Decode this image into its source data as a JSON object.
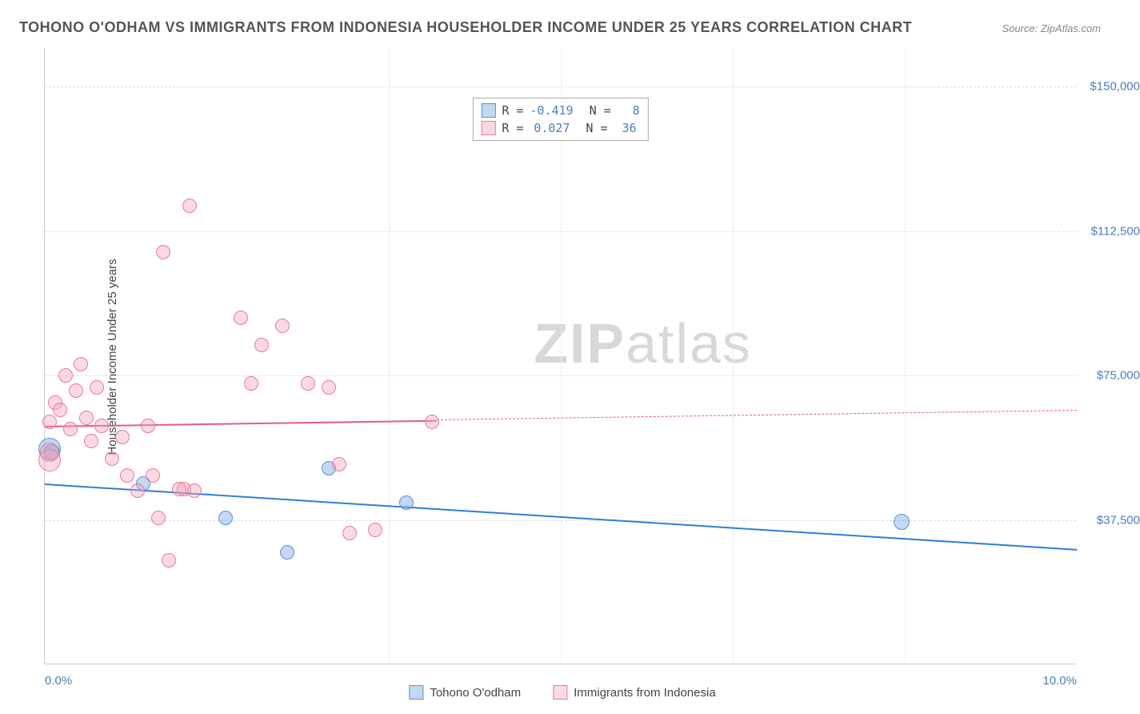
{
  "title": "TOHONO O'ODHAM VS IMMIGRANTS FROM INDONESIA HOUSEHOLDER INCOME UNDER 25 YEARS CORRELATION CHART",
  "source": "Source: ZipAtlas.com",
  "watermark_a": "ZIP",
  "watermark_b": "atlas",
  "chart": {
    "type": "scatter",
    "y_axis_title": "Householder Income Under 25 years",
    "xlim": [
      0,
      10
    ],
    "ylim": [
      0,
      160000
    ],
    "x_ticks": [
      {
        "pos": 0,
        "label": "0.0%"
      },
      {
        "pos": 10,
        "label": "10.0%"
      }
    ],
    "x_grid_positions": [
      3.33,
      5.0,
      6.67,
      8.33
    ],
    "y_ticks": [
      {
        "pos": 37500,
        "label": "$37,500"
      },
      {
        "pos": 75000,
        "label": "$75,000"
      },
      {
        "pos": 112500,
        "label": "$112,500"
      },
      {
        "pos": 150000,
        "label": "$150,000"
      }
    ],
    "background_color": "#ffffff",
    "grid_color": "#dddddd",
    "axis_label_color": "#4a7ebb",
    "title_color": "#555555",
    "title_fontsize": 18,
    "label_fontsize": 15
  },
  "series": [
    {
      "key": "tohono",
      "label": "Tohono O'odham",
      "fill": "rgba(120,170,225,0.45)",
      "stroke": "#5b8fd6",
      "line_color": "#2f7ed8",
      "R": "-0.419",
      "N": "8",
      "trend": {
        "x1": 0,
        "y1": 47000,
        "x2": 10,
        "y2": 30000,
        "dashed_from_x": null
      },
      "points": [
        {
          "x": 0.05,
          "y": 56000,
          "r": 14
        },
        {
          "x": 0.07,
          "y": 55000,
          "r": 10
        },
        {
          "x": 0.95,
          "y": 47000,
          "r": 9
        },
        {
          "x": 1.75,
          "y": 38000,
          "r": 9
        },
        {
          "x": 2.35,
          "y": 29000,
          "r": 9
        },
        {
          "x": 2.75,
          "y": 51000,
          "r": 9
        },
        {
          "x": 3.5,
          "y": 42000,
          "r": 9
        },
        {
          "x": 8.3,
          "y": 37000,
          "r": 10
        }
      ]
    },
    {
      "key": "indonesia",
      "label": "Immigrants from Indonesia",
      "fill": "rgba(245,160,185,0.40)",
      "stroke": "#e77a9b",
      "line_color": "#e55b86",
      "R": "0.027",
      "N": "36",
      "trend": {
        "x1": 0,
        "y1": 62000,
        "x2": 10,
        "y2": 66000,
        "dashed_from_x": 3.8
      },
      "points": [
        {
          "x": 0.05,
          "y": 63000,
          "r": 9
        },
        {
          "x": 0.05,
          "y": 55000,
          "r": 12
        },
        {
          "x": 0.05,
          "y": 53000,
          "r": 14
        },
        {
          "x": 0.1,
          "y": 68000,
          "r": 9
        },
        {
          "x": 0.15,
          "y": 66000,
          "r": 9
        },
        {
          "x": 0.2,
          "y": 75000,
          "r": 9
        },
        {
          "x": 0.25,
          "y": 61000,
          "r": 9
        },
        {
          "x": 0.3,
          "y": 71000,
          "r": 9
        },
        {
          "x": 0.35,
          "y": 78000,
          "r": 9
        },
        {
          "x": 0.4,
          "y": 64000,
          "r": 9
        },
        {
          "x": 0.45,
          "y": 58000,
          "r": 9
        },
        {
          "x": 0.5,
          "y": 72000,
          "r": 9
        },
        {
          "x": 0.55,
          "y": 62000,
          "r": 9
        },
        {
          "x": 0.65,
          "y": 53500,
          "r": 9
        },
        {
          "x": 0.75,
          "y": 59000,
          "r": 9
        },
        {
          "x": 0.8,
          "y": 49000,
          "r": 9
        },
        {
          "x": 0.9,
          "y": 45000,
          "r": 9
        },
        {
          "x": 1.0,
          "y": 62000,
          "r": 9
        },
        {
          "x": 1.05,
          "y": 49000,
          "r": 9
        },
        {
          "x": 1.1,
          "y": 38000,
          "r": 9
        },
        {
          "x": 1.15,
          "y": 107000,
          "r": 9
        },
        {
          "x": 1.2,
          "y": 27000,
          "r": 9
        },
        {
          "x": 1.3,
          "y": 45500,
          "r": 9
        },
        {
          "x": 1.35,
          "y": 45500,
          "r": 9
        },
        {
          "x": 1.4,
          "y": 119000,
          "r": 9
        },
        {
          "x": 1.45,
          "y": 45000,
          "r": 9
        },
        {
          "x": 1.9,
          "y": 90000,
          "r": 9
        },
        {
          "x": 2.0,
          "y": 73000,
          "r": 9
        },
        {
          "x": 2.1,
          "y": 83000,
          "r": 9
        },
        {
          "x": 2.3,
          "y": 88000,
          "r": 9
        },
        {
          "x": 2.55,
          "y": 73000,
          "r": 9
        },
        {
          "x": 2.75,
          "y": 72000,
          "r": 9
        },
        {
          "x": 2.85,
          "y": 52000,
          "r": 9
        },
        {
          "x": 2.95,
          "y": 34000,
          "r": 9
        },
        {
          "x": 3.2,
          "y": 35000,
          "r": 9
        },
        {
          "x": 3.75,
          "y": 63000,
          "r": 9
        }
      ]
    }
  ],
  "legend_labels": {
    "R": "R =",
    "N": "N ="
  }
}
